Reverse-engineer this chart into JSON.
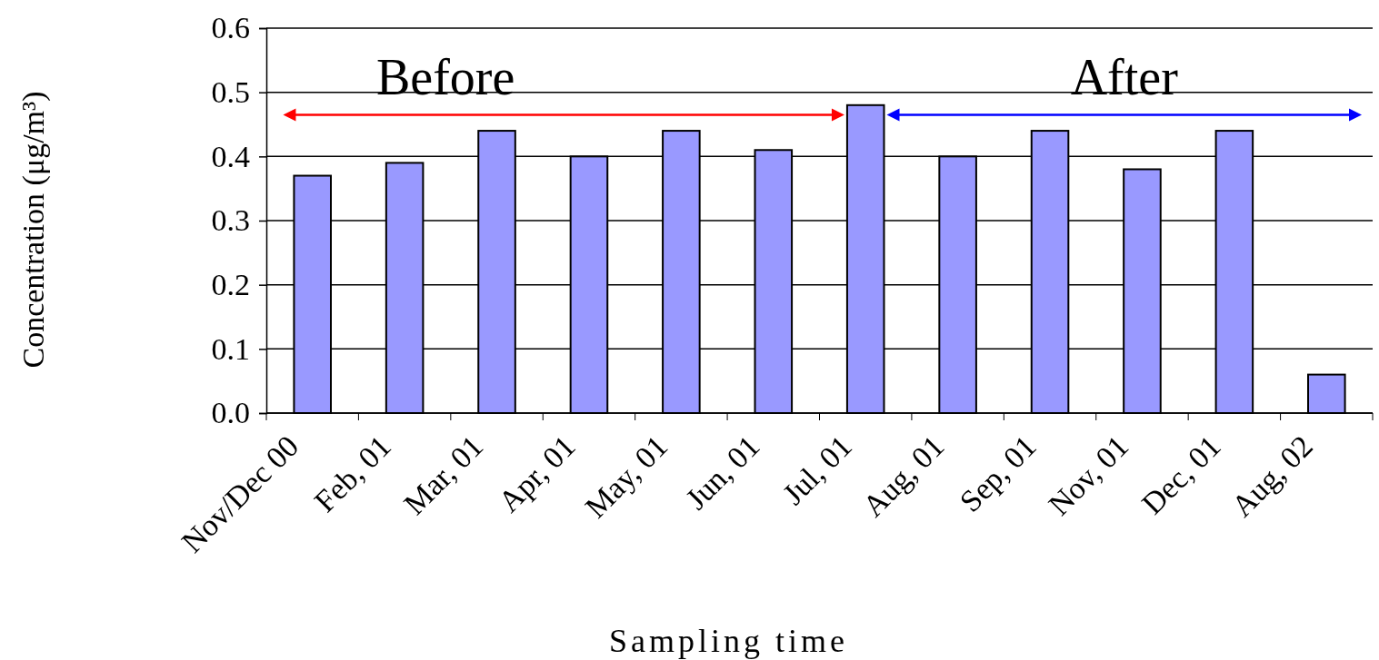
{
  "chart_data": {
    "type": "bar",
    "ylabel": "Concentration (μg/m³)",
    "xlabel": "Sampling time",
    "categories": [
      "Nov/Dec 00",
      "Feb, 01",
      "Mar, 01",
      "Apr, 01",
      "May, 01",
      "Jun, 01",
      "Jul, 01",
      "Aug, 01",
      "Sep, 01",
      "Nov, 01",
      "Dec, 01",
      "Aug, 02"
    ],
    "values": [
      0.37,
      0.39,
      0.44,
      0.4,
      0.44,
      0.41,
      0.48,
      0.4,
      0.44,
      0.38,
      0.44,
      0.06
    ],
    "color": "#9999ff",
    "ylim": [
      0,
      0.6
    ],
    "yticks": [
      {
        "value": 0,
        "label": "0.0"
      },
      {
        "value": 0.1,
        "label": "0.1"
      },
      {
        "value": 0.2,
        "label": "0.2"
      },
      {
        "value": 0.3,
        "label": "0.3"
      },
      {
        "value": 0.4,
        "label": "0.4"
      },
      {
        "value": 0.5,
        "label": "0.5"
      },
      {
        "value": 0.6,
        "label": "0.6"
      }
    ],
    "grid": "y",
    "annotations": [
      "Before",
      "After"
    ]
  }
}
